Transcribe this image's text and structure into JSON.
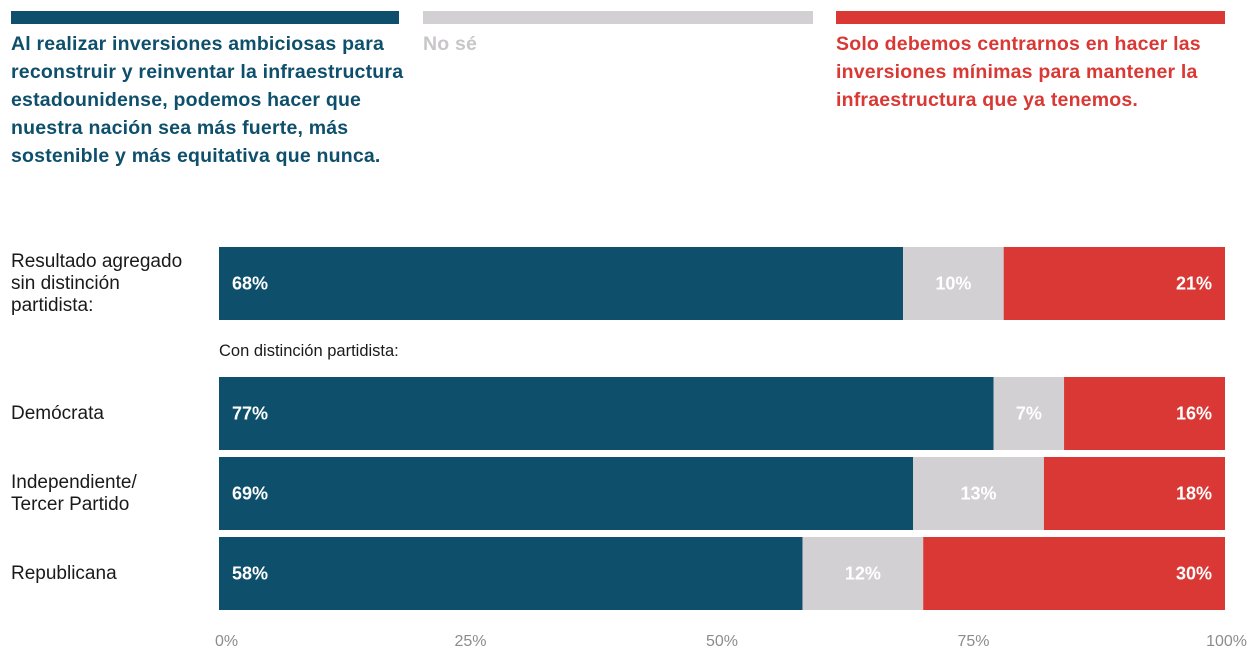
{
  "chart_data": {
    "type": "bar",
    "orientation": "horizontal",
    "stacked": true,
    "legend": [
      {
        "name": "Al realizar inversiones ambiciosas para reconstruir y reinventar la infraestructura estadounidense, podemos hacer que nuestra nación sea más fuerte, más sostenible y más equitativa que nunca.",
        "color": "#0e4f6c"
      },
      {
        "name": "No sé",
        "color": "#d3d0d3"
      },
      {
        "name": "Solo debemos centrarnos en hacer las inversiones mínimas para mantener la infraestructura que ya tenemos.",
        "color": "#d93834"
      }
    ],
    "section_label": "Con distinción partidista:",
    "categories": [
      "Resultado agregado sin distinción partidista:",
      "Demócrata",
      "Independiente/ Tercer Partido",
      "Republicana"
    ],
    "series": [
      {
        "name": "Al realizar inversiones ambiciosas para reconstruir y reinventar la infraestructura estadounidense, podemos hacer que nuestra nación sea más fuerte, más sostenible y más equitativa que nunca.",
        "values": [
          68,
          77,
          69,
          58
        ],
        "labels": [
          "68%",
          "77%",
          "69%",
          "58%"
        ],
        "color": "#0e4f6c"
      },
      {
        "name": "No sé",
        "values": [
          10,
          7,
          13,
          12
        ],
        "labels": [
          "10%",
          "7%",
          "13%",
          "12%"
        ],
        "color": "#d3d0d3"
      },
      {
        "name": "Solo debemos centrarnos en hacer las inversiones mínimas para mantener la infraestructura que ya tenemos.",
        "values": [
          21,
          16,
          18,
          30
        ],
        "labels": [
          "21%",
          "16%",
          "18%",
          "30%"
        ],
        "color": "#d93834"
      }
    ],
    "xlim": [
      0,
      100
    ],
    "x_ticks": [
      0,
      25,
      50,
      75,
      100
    ],
    "x_tick_labels": [
      "0%",
      "25%",
      "50%",
      "75%",
      "100%"
    ],
    "grid": false
  }
}
